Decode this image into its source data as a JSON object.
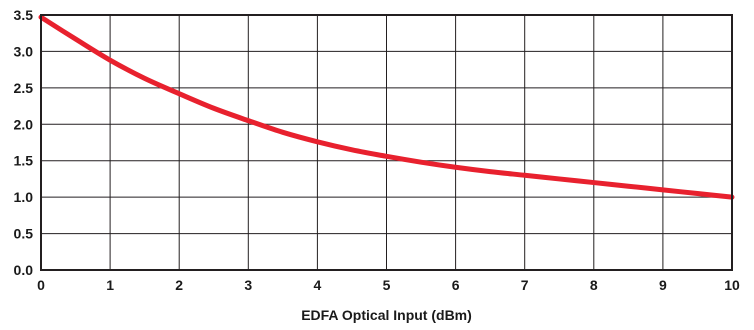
{
  "chart_data": {
    "type": "line",
    "title": "",
    "xlabel": "EDFA Optical Input (dBm)",
    "ylabel": "",
    "xlim": [
      0,
      10
    ],
    "ylim": [
      0,
      3.5
    ],
    "x_ticks": [
      "0",
      "1",
      "2",
      "3",
      "4",
      "5",
      "6",
      "7",
      "8",
      "9",
      "10"
    ],
    "y_ticks": [
      "0.0",
      "0.5",
      "1.0",
      "1.5",
      "2.0",
      "2.5",
      "3.0",
      "3.5"
    ],
    "grid": true,
    "series": [
      {
        "color": "#e8212e",
        "x": [
          0,
          0.5,
          1,
          1.5,
          2,
          2.5,
          3,
          3.5,
          4,
          4.5,
          5,
          5.5,
          6,
          6.5,
          7,
          7.5,
          8,
          8.5,
          9,
          9.5,
          10
        ],
        "y": [
          3.47,
          3.17,
          2.88,
          2.63,
          2.42,
          2.22,
          2.05,
          1.89,
          1.76,
          1.65,
          1.56,
          1.48,
          1.41,
          1.35,
          1.3,
          1.25,
          1.2,
          1.15,
          1.1,
          1.05,
          1.0
        ]
      }
    ]
  }
}
